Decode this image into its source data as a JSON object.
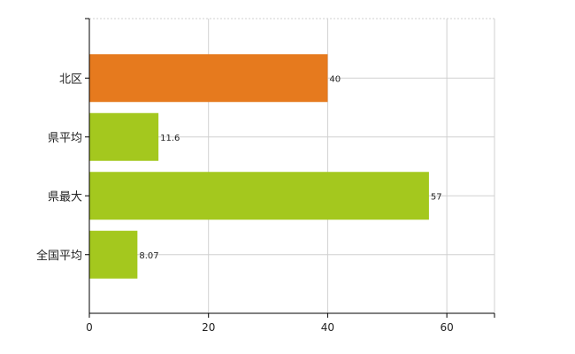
{
  "chart_data": {
    "type": "bar",
    "orientation": "horizontal",
    "categories": [
      "北区",
      "県平均",
      "県最大",
      "全国平均"
    ],
    "values": [
      40,
      11.6,
      57,
      8.07
    ],
    "value_labels": [
      "40",
      "11.6",
      "57",
      "8.07"
    ],
    "bar_colors": [
      "#e67a1e",
      "#a4c81e",
      "#a4c81e",
      "#a4c81e"
    ],
    "xlim": [
      0,
      68
    ],
    "x_ticks": [
      0,
      20,
      40,
      60
    ],
    "x_tick_labels": [
      "0",
      "20",
      "40",
      "60"
    ],
    "grid": true,
    "legend": "none",
    "title": "",
    "xlabel": "",
    "ylabel": ""
  },
  "colors": {
    "highlight_bar": "#e67a1e",
    "default_bar": "#a4c81e",
    "grid": "#d0d0d0",
    "axis": "#000000"
  }
}
